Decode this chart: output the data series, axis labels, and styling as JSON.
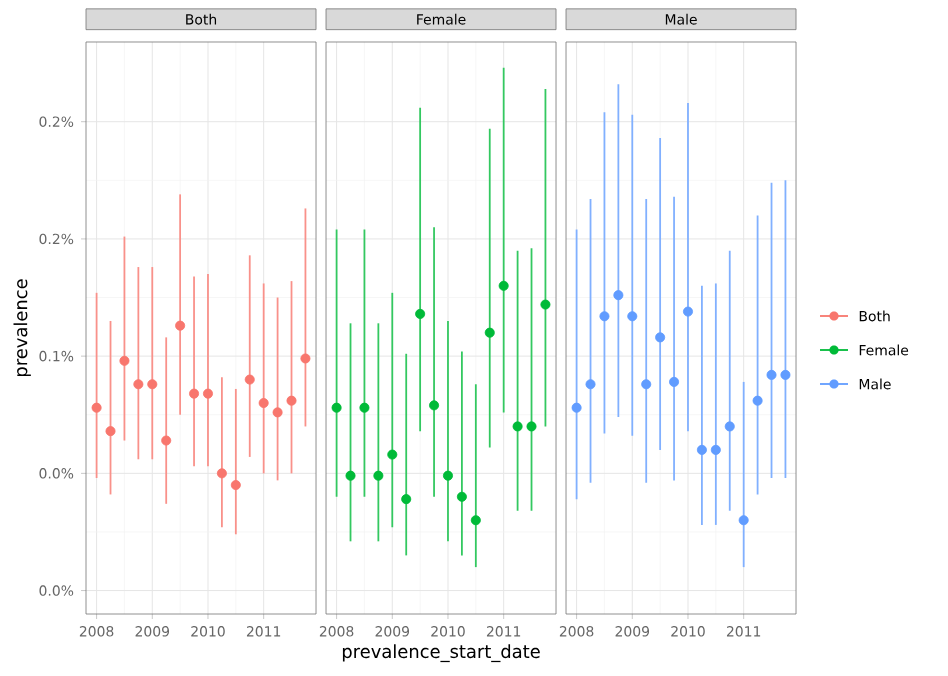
{
  "chart_data": [
    {
      "type": "scatter",
      "title": "Both",
      "ylabel": "prevalence",
      "marker": "circle",
      "grid": true,
      "legend": "right",
      "x": [
        2008,
        2008.25,
        2008.5,
        2008.75,
        2009,
        2009.25,
        2009.5,
        2009.75,
        2010,
        2010.25,
        2010.5,
        2010.75,
        2011,
        2011.25,
        2011.5,
        2011.75
      ],
      "xlim": [
        2007.81,
        2011.94
      ],
      "xticks": [
        2008,
        2009,
        2010,
        2011
      ],
      "ylim": [
        -0.01,
        0.234
      ],
      "yticks": [
        {
          "value": 0,
          "label": "0.0%"
        },
        {
          "value": 0.05,
          "label": "0.0%"
        },
        {
          "value": 0.1,
          "label": "0.1%"
        },
        {
          "value": 0.15,
          "label": "0.2%"
        },
        {
          "value": 0.2,
          "label": "0.2%"
        }
      ],
      "series": [
        {
          "name": "Both",
          "color": "#f8766d",
          "values": [
            0.078,
            0.068,
            0.098,
            0.088,
            0.088,
            0.064,
            0.113,
            0.084,
            0.084,
            0.05,
            0.045,
            0.09,
            0.08,
            0.076,
            0.081,
            0.099
          ],
          "errors": [
            [
              0.048,
              0.127
            ],
            [
              0.041,
              0.115
            ],
            [
              0.064,
              0.151
            ],
            [
              0.056,
              0.138
            ],
            [
              0.056,
              0.138
            ],
            [
              0.037,
              0.108
            ],
            [
              0.075,
              0.169
            ],
            [
              0.053,
              0.134
            ],
            [
              0.053,
              0.135
            ],
            [
              0.027,
              0.091
            ],
            [
              0.024,
              0.086
            ],
            [
              0.057,
              0.143
            ],
            [
              0.05,
              0.131
            ],
            [
              0.047,
              0.125
            ],
            [
              0.05,
              0.132
            ],
            [
              0.07,
              0.163
            ]
          ]
        }
      ]
    },
    {
      "type": "scatter",
      "title": "Female",
      "xlabel": "prevalence_start_date",
      "marker": "circle",
      "grid": true,
      "legend": "right",
      "tick_labels": "x",
      "x": [
        2008,
        2008.25,
        2008.5,
        2008.75,
        2009,
        2009.25,
        2009.5,
        2009.75,
        2010,
        2010.25,
        2010.5,
        2010.75,
        2011,
        2011.25,
        2011.5,
        2011.75
      ],
      "xlim": [
        2007.81,
        2011.94
      ],
      "xticks": [
        2008,
        2009,
        2010,
        2011
      ],
      "ylim": [
        -0.01,
        0.234
      ],
      "yticks": [
        {
          "value": 0,
          "label": null
        },
        {
          "value": 0.05,
          "label": null
        },
        {
          "value": 0.1,
          "label": null
        },
        {
          "value": 0.15,
          "label": null
        },
        {
          "value": 0.2,
          "label": null
        }
      ],
      "series": [
        {
          "name": "Female",
          "color": "#00ba38",
          "values": [
            0.078,
            0.049,
            0.078,
            0.049,
            0.058,
            0.039,
            0.118,
            0.079,
            0.049,
            0.04,
            0.03,
            0.11,
            0.13,
            0.07,
            0.07,
            0.122
          ],
          "errors": [
            [
              0.04,
              0.154
            ],
            [
              0.021,
              0.114
            ],
            [
              0.04,
              0.154
            ],
            [
              0.021,
              0.114
            ],
            [
              0.027,
              0.127
            ],
            [
              0.015,
              0.101
            ],
            [
              0.068,
              0.206
            ],
            [
              0.04,
              0.155
            ],
            [
              0.021,
              0.115
            ],
            [
              0.015,
              0.102
            ],
            [
              0.01,
              0.088
            ],
            [
              0.061,
              0.197
            ],
            [
              0.076,
              0.223
            ],
            [
              0.034,
              0.145
            ],
            [
              0.034,
              0.146
            ],
            [
              0.07,
              0.214
            ]
          ]
        }
      ]
    },
    {
      "type": "scatter",
      "title": "Male",
      "marker": "circle",
      "grid": true,
      "legend": "right",
      "tick_labels": "x",
      "x": [
        2008,
        2008.25,
        2008.5,
        2008.75,
        2009,
        2009.25,
        2009.5,
        2009.75,
        2010,
        2010.25,
        2010.5,
        2010.75,
        2011,
        2011.25,
        2011.5,
        2011.75
      ],
      "xlim": [
        2007.81,
        2011.94
      ],
      "xticks": [
        2008,
        2009,
        2010,
        2011
      ],
      "ylim": [
        -0.01,
        0.234
      ],
      "yticks": [
        {
          "value": 0,
          "label": null
        },
        {
          "value": 0.05,
          "label": null
        },
        {
          "value": 0.1,
          "label": null
        },
        {
          "value": 0.15,
          "label": null
        },
        {
          "value": 0.2,
          "label": null
        }
      ],
      "series": [
        {
          "name": "Male",
          "color": "#619cff",
          "values": [
            0.078,
            0.088,
            0.117,
            0.126,
            0.117,
            0.088,
            0.108,
            0.089,
            0.119,
            0.06,
            0.06,
            0.07,
            0.03,
            0.081,
            0.092,
            0.092
          ],
          "errors": [
            [
              0.039,
              0.154
            ],
            [
              0.046,
              0.167
            ],
            [
              0.067,
              0.204
            ],
            [
              0.074,
              0.216
            ],
            [
              0.066,
              0.203
            ],
            [
              0.046,
              0.167
            ],
            [
              0.06,
              0.193
            ],
            [
              0.047,
              0.168
            ],
            [
              0.068,
              0.208
            ],
            [
              0.028,
              0.13
            ],
            [
              0.028,
              0.131
            ],
            [
              0.034,
              0.145
            ],
            [
              0.01,
              0.089
            ],
            [
              0.041,
              0.16
            ],
            [
              0.048,
              0.174
            ],
            [
              0.048,
              0.175
            ]
          ]
        }
      ]
    }
  ]
}
